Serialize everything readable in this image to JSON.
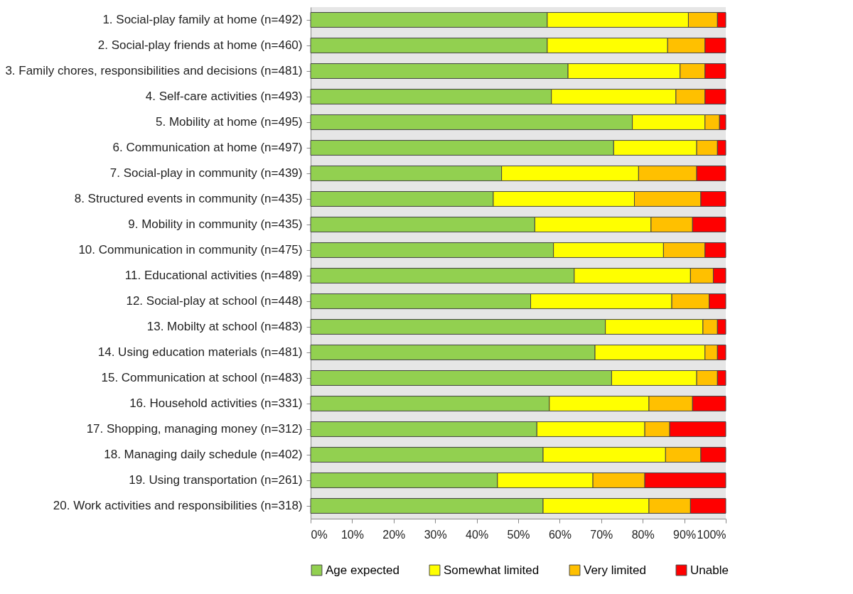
{
  "chart_data": {
    "type": "bar",
    "orientation": "horizontal",
    "stacked": true,
    "categories": [
      "1. Social-play family at home (n=492)",
      "2. Social-play friends at home (n=460)",
      "3. Family chores, responsibilities and decisions (n=481)",
      "4. Self-care activities (n=493)",
      "5. Mobility at home (n=495)",
      "6. Communication at home (n=497)",
      "7. Social-play in community (n=439)",
      "8. Structured events in community (n=435)",
      "9. Mobility in community (n=435)",
      "10. Communication in community (n=475)",
      "11. Educational activities (n=489)",
      "12. Social-play at school (n=448)",
      "13. Mobilty at school (n=483)",
      "14. Using education materials (n=481)",
      "15. Communication at school (n=483)",
      "16. Household activities (n=331)",
      "17. Shopping, managing money (n=312)",
      "18. Managing daily schedule (n=402)",
      "19. Using transportation (n=261)",
      "20. Work activities and responsibilities (n=318)"
    ],
    "series": [
      {
        "name": "Age expected",
        "color": "#92d050",
        "values": [
          57,
          57,
          62,
          58,
          77.5,
          73,
          46,
          44,
          54,
          58.5,
          63.5,
          53,
          71,
          68.5,
          72.5,
          57.5,
          54.5,
          56,
          45,
          56
        ]
      },
      {
        "name": "Somewhat limited",
        "color": "#ffff00",
        "values": [
          34,
          29,
          27,
          30,
          17.5,
          20,
          33,
          34,
          28,
          26.5,
          28,
          34,
          23.5,
          26.5,
          20.5,
          24,
          26,
          29.5,
          23,
          25.5
        ]
      },
      {
        "name": "Very limited",
        "color": "#ffc000",
        "values": [
          7,
          9,
          6,
          7,
          3.5,
          5,
          14,
          16,
          10,
          10,
          5.5,
          9,
          3.5,
          3,
          5,
          10.5,
          6,
          8.5,
          12.5,
          10
        ]
      },
      {
        "name": "Unable",
        "color": "#ff0000",
        "values": [
          2,
          5,
          5,
          5,
          1.5,
          2,
          7,
          6,
          8,
          5,
          3,
          4,
          2,
          2,
          2,
          8,
          13.5,
          6,
          19.5,
          8.5
        ]
      }
    ],
    "xlim": [
      0,
      100
    ],
    "xticks": [
      {
        "value": 0,
        "label": "0%"
      },
      {
        "value": 10,
        "label": "10%"
      },
      {
        "value": 20,
        "label": "20%"
      },
      {
        "value": 30,
        "label": "30%"
      },
      {
        "value": 40,
        "label": "40%"
      },
      {
        "value": 50,
        "label": "50%"
      },
      {
        "value": 60,
        "label": "60%"
      },
      {
        "value": 70,
        "label": "70%"
      },
      {
        "value": 80,
        "label": "80%"
      },
      {
        "value": 90,
        "label": "90%"
      },
      {
        "value": 100,
        "label": "100%"
      }
    ],
    "grid": false,
    "legend": "bottom"
  }
}
